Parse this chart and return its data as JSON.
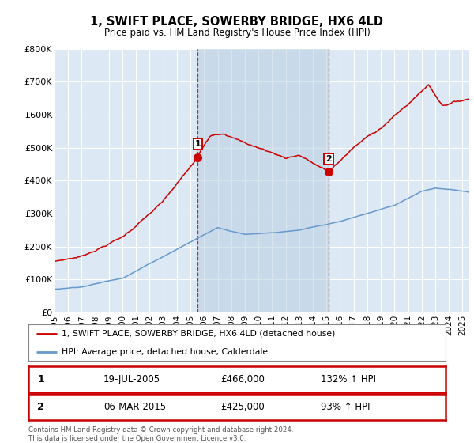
{
  "title": "1, SWIFT PLACE, SOWERBY BRIDGE, HX6 4LD",
  "subtitle": "Price paid vs. HM Land Registry's House Price Index (HPI)",
  "sale1_date": "19-JUL-2005",
  "sale1_price": 466000,
  "sale1_hpi": "132% ↑ HPI",
  "sale1_year": 2005.54,
  "sale2_date": "06-MAR-2015",
  "sale2_price": 425000,
  "sale2_hpi": "93% ↑ HPI",
  "sale2_year": 2015.18,
  "red_color": "#cc0000",
  "blue_color": "#6699cc",
  "bg_color": "#dce9f5",
  "highlight_color": "#c8d8ee",
  "legend_label_red": "1, SWIFT PLACE, SOWERBY BRIDGE, HX6 4LD (detached house)",
  "legend_label_blue": "HPI: Average price, detached house, Calderdale",
  "footer": "Contains HM Land Registry data © Crown copyright and database right 2024.\nThis data is licensed under the Open Government Licence v3.0.",
  "ylim": [
    0,
    800000
  ],
  "yticks": [
    0,
    100000,
    200000,
    300000,
    400000,
    500000,
    600000,
    700000,
    800000
  ],
  "ytick_labels": [
    "£0",
    "£100K",
    "£200K",
    "£300K",
    "£400K",
    "£500K",
    "£600K",
    "£700K",
    "£800K"
  ]
}
